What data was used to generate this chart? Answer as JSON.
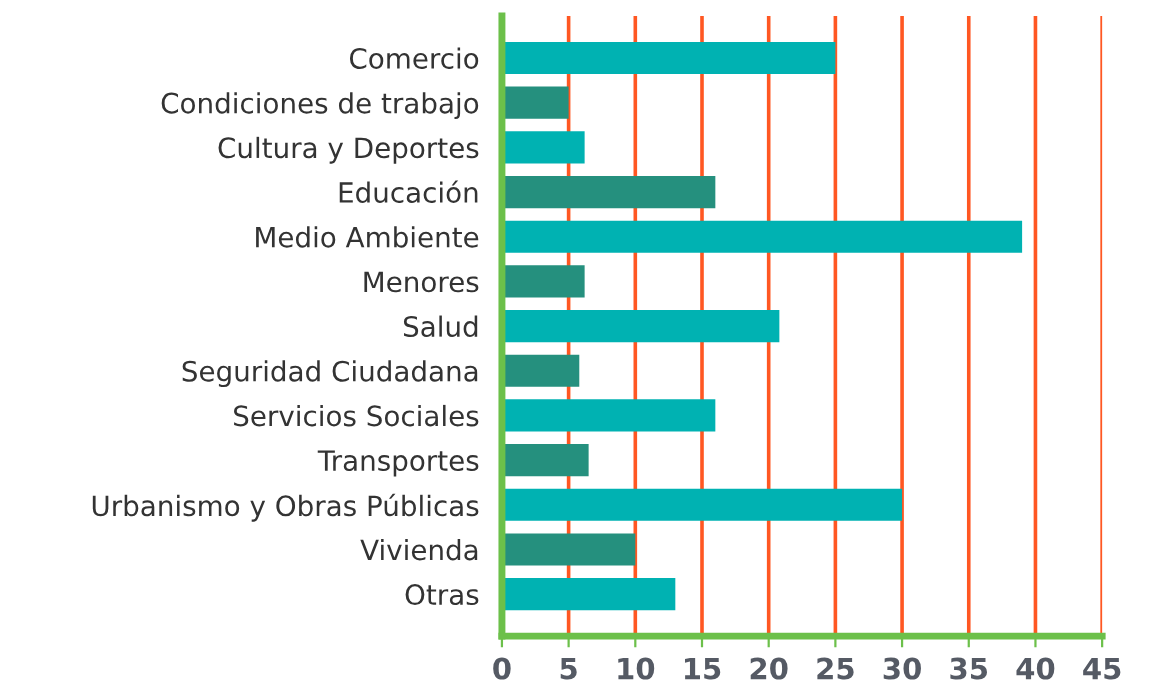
{
  "chart_data": {
    "type": "bar",
    "orientation": "horizontal",
    "categories": [
      "Comercio",
      "Condiciones de trabajo",
      "Cultura y Deportes",
      "Educación",
      "Medio Ambiente",
      "Menores",
      "Salud",
      "Seguridad Ciudadana",
      "Servicios Sociales",
      "Transportes",
      "Urbanismo y Obras Públicas",
      "Vivienda",
      "Otras"
    ],
    "values": [
      25,
      5,
      6.2,
      16,
      39,
      6.2,
      20.8,
      5.8,
      16,
      6.5,
      30,
      10,
      13
    ],
    "colors": [
      "#00b2b2",
      "#25907e",
      "#00b2b2",
      "#25907e",
      "#00b2b2",
      "#25907e",
      "#00b2b2",
      "#25907e",
      "#00b2b2",
      "#25907e",
      "#00b2b2",
      "#25907e",
      "#00b2b2"
    ],
    "xlim": [
      0,
      45
    ],
    "xticks": [
      0,
      5,
      10,
      15,
      20,
      25,
      30,
      35,
      40,
      45
    ],
    "grid": "x"
  }
}
